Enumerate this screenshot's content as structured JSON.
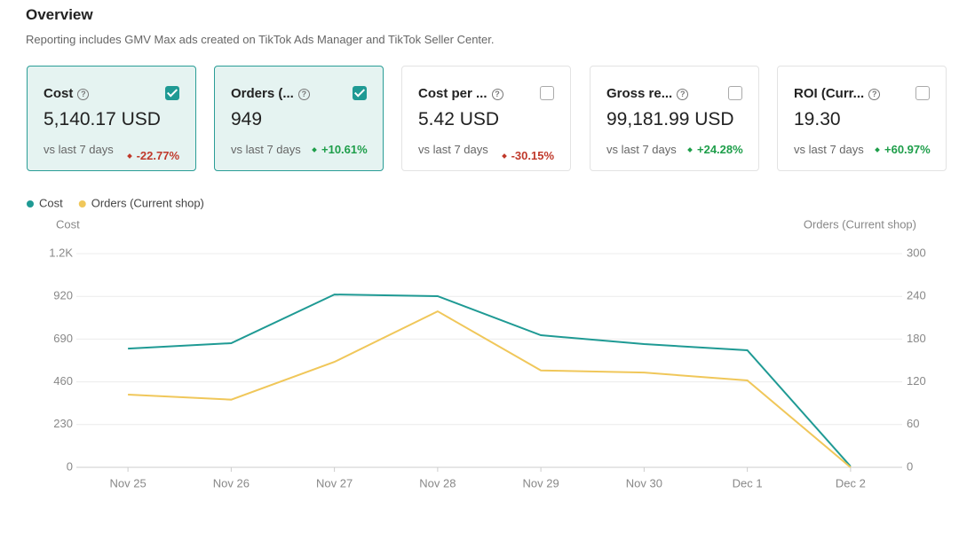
{
  "header": {
    "title": "Overview",
    "subtitle": "Reporting includes GMV Max ads created on TikTok Ads Manager and TikTok Seller Center."
  },
  "cards": [
    {
      "label": "Cost",
      "value": "5,140.17 USD",
      "compare": "vs last 7 days",
      "change": "-22.77%",
      "checked": true
    },
    {
      "label": "Orders (...",
      "value": "949",
      "compare": "vs last 7 days",
      "change": "+10.61%",
      "checked": true
    },
    {
      "label": "Cost per ...",
      "value": "5.42 USD",
      "compare": "vs last 7 days",
      "change": "-30.15%",
      "checked": false
    },
    {
      "label": "Gross re...",
      "value": "99,181.99 USD",
      "compare": "vs last 7 days",
      "change": "+24.28%",
      "checked": false
    },
    {
      "label": "ROI (Curr...",
      "value": "19.30",
      "compare": "vs last 7 days",
      "change": "+60.97%",
      "checked": false
    }
  ],
  "chart_data": {
    "type": "line",
    "ylabel": "Cost",
    "y2label": "Orders (Current shop)",
    "categories": [
      "Nov 25",
      "Nov 26",
      "Nov 27",
      "Nov 28",
      "Nov 29",
      "Nov 30",
      "Dec 1",
      "Dec 2"
    ],
    "series": [
      {
        "name": "Cost",
        "color": "#1f9a94",
        "values": [
          639,
          668,
          930,
          921,
          711,
          663,
          630,
          5
        ]
      },
      {
        "name": "Orders (Current shop)",
        "color": "#f0c75a",
        "axis": "y2",
        "values": [
          102,
          95,
          148,
          219,
          136,
          133,
          122,
          0
        ]
      }
    ],
    "ylim": [
      0,
      1150
    ],
    "yticks": [
      0,
      230,
      460,
      690,
      920,
      {
        "value": 1150,
        "label": "1.2K"
      }
    ],
    "y2lim": [
      0,
      300
    ],
    "y2ticks": [
      0,
      60,
      120,
      180,
      240,
      300
    ],
    "grid": true
  }
}
